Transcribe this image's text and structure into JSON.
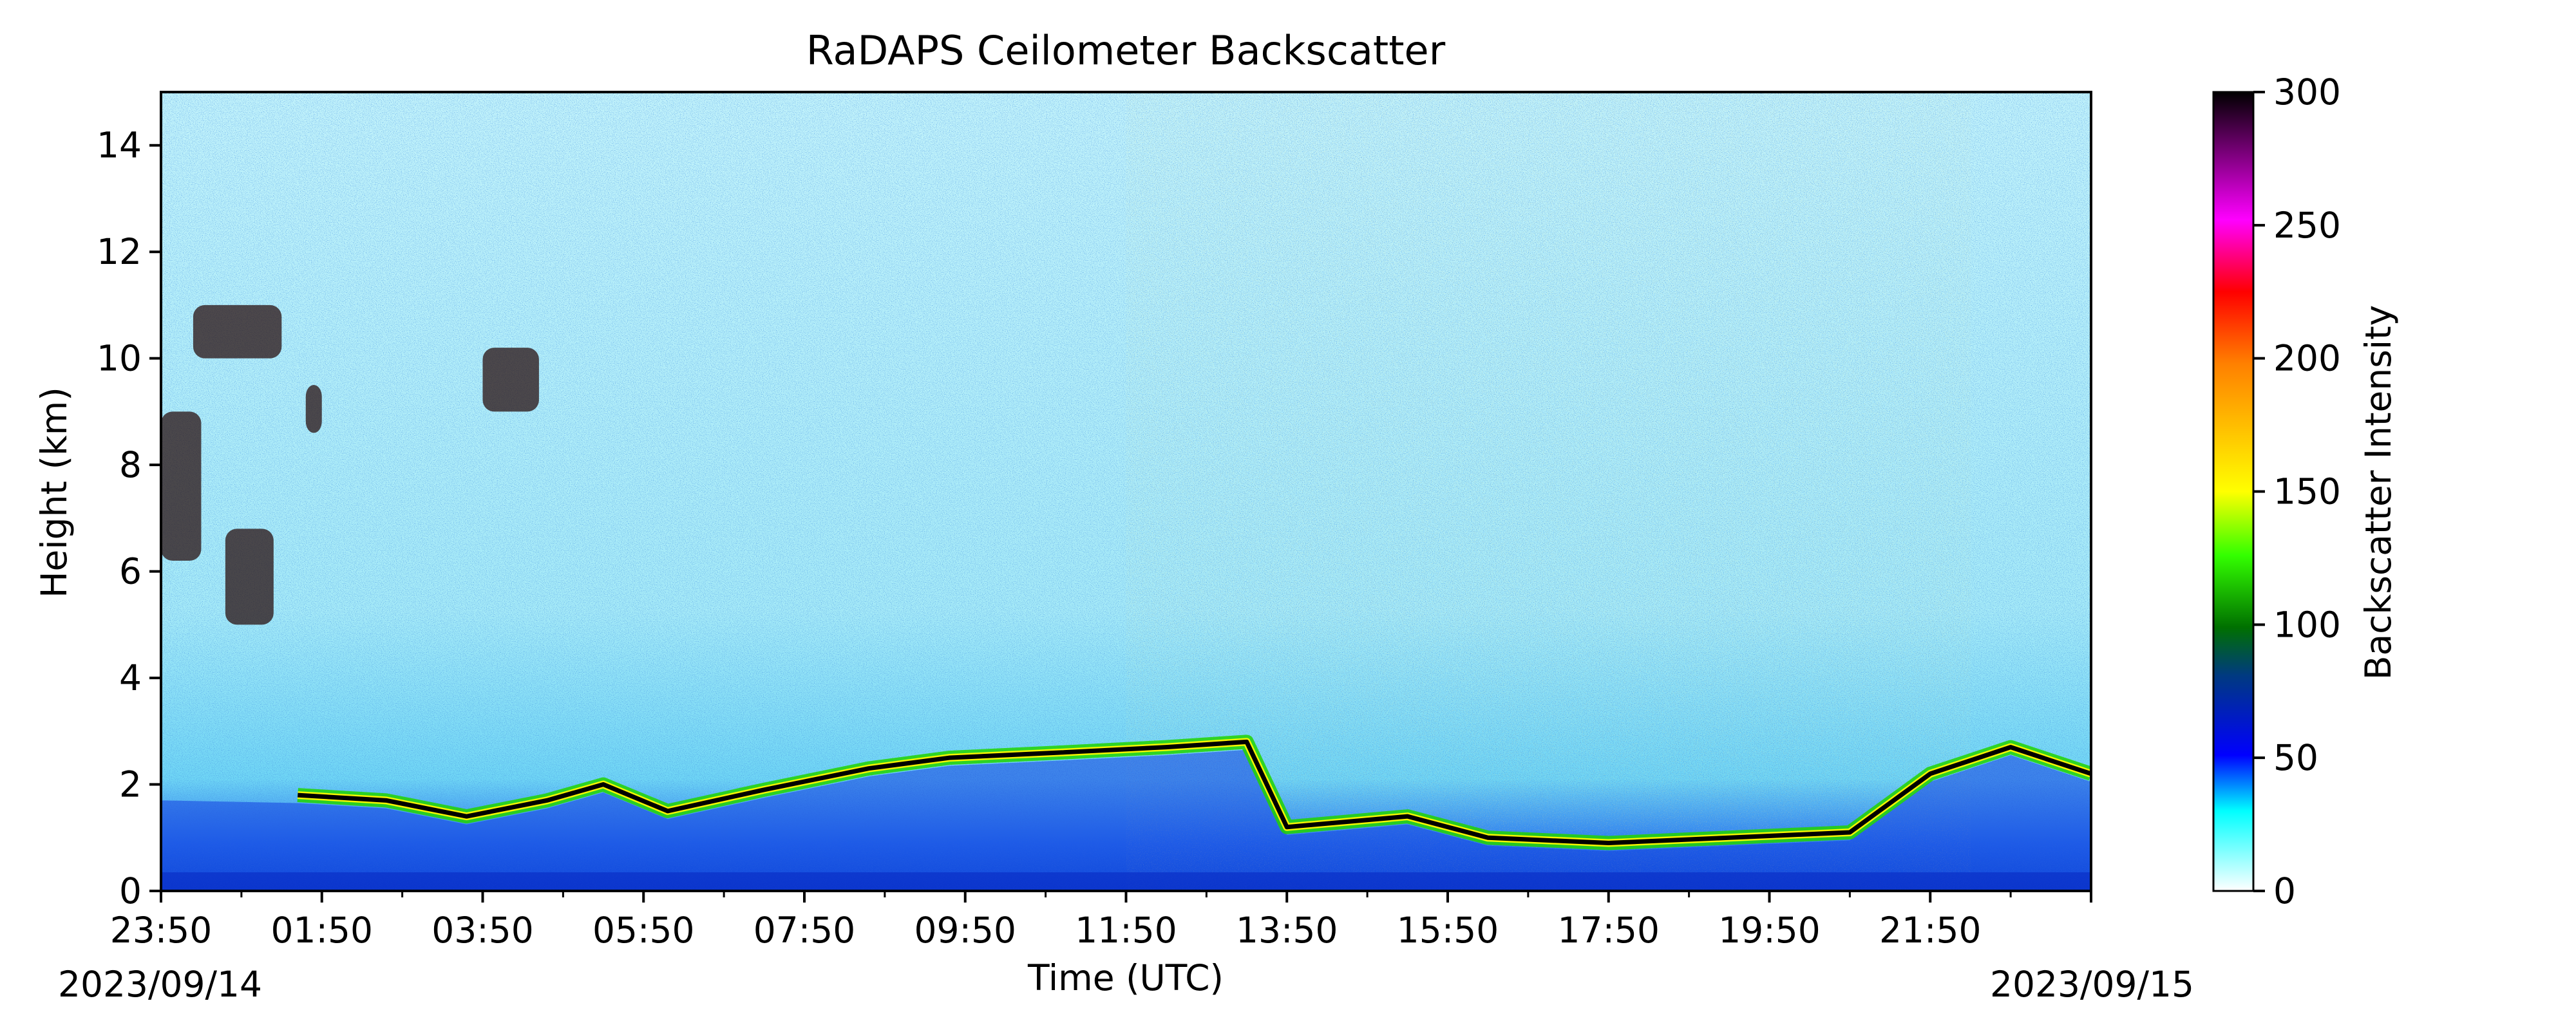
{
  "chart_data": {
    "type": "heatmap",
    "title": "RaDAPS Ceilometer Backscatter",
    "xlabel": "Time (UTC)",
    "ylabel": "Height (km)",
    "x_start_label": "23:50",
    "x_ticks": [
      "23:50",
      "01:50",
      "03:50",
      "05:50",
      "07:50",
      "09:50",
      "11:50",
      "13:50",
      "15:50",
      "17:50",
      "19:50",
      "21:50"
    ],
    "x_range_hours": [
      0,
      24
    ],
    "dates": [
      "2023/09/14",
      "2023/09/15"
    ],
    "y_ticks": [
      0,
      2,
      4,
      6,
      8,
      10,
      12,
      14
    ],
    "ylim": [
      0,
      15
    ],
    "colorbar": {
      "label": "Backscatter Intensity",
      "ticks": [
        0,
        50,
        100,
        150,
        200,
        250,
        300
      ],
      "range": [
        0,
        300
      ]
    },
    "cloud_base_trace_km": [
      {
        "t": 1.7,
        "h": 1.8
      },
      {
        "t": 2.8,
        "h": 1.7
      },
      {
        "t": 3.8,
        "h": 1.4
      },
      {
        "t": 4.8,
        "h": 1.7
      },
      {
        "t": 5.5,
        "h": 2.0
      },
      {
        "t": 6.3,
        "h": 1.5
      },
      {
        "t": 7.5,
        "h": 1.9
      },
      {
        "t": 8.8,
        "h": 2.3
      },
      {
        "t": 9.8,
        "h": 2.5
      },
      {
        "t": 11.2,
        "h": 2.6
      },
      {
        "t": 12.5,
        "h": 2.7
      },
      {
        "t": 13.5,
        "h": 2.8
      },
      {
        "t": 14.0,
        "h": 1.2
      },
      {
        "t": 15.5,
        "h": 1.4
      },
      {
        "t": 16.5,
        "h": 1.0
      },
      {
        "t": 18.0,
        "h": 0.9
      },
      {
        "t": 19.5,
        "h": 1.0
      },
      {
        "t": 21.0,
        "h": 1.1
      },
      {
        "t": 22.0,
        "h": 2.2
      },
      {
        "t": 23.0,
        "h": 2.7
      },
      {
        "t": 24.0,
        "h": 2.2
      }
    ],
    "high_cloud_patches": [
      {
        "t0": 0.0,
        "t1": 0.5,
        "h0": 6.2,
        "h1": 9.0
      },
      {
        "t0": 0.8,
        "t1": 1.4,
        "h0": 5.0,
        "h1": 6.8
      },
      {
        "t0": 0.4,
        "t1": 1.5,
        "h0": 10.0,
        "h1": 11.0
      },
      {
        "t0": 1.8,
        "t1": 2.0,
        "h0": 8.6,
        "h1": 9.5
      },
      {
        "t0": 4.0,
        "t1": 4.7,
        "h0": 9.0,
        "h1": 10.2
      }
    ],
    "noisy_period_hours": [
      12.0,
      22.5
    ]
  }
}
